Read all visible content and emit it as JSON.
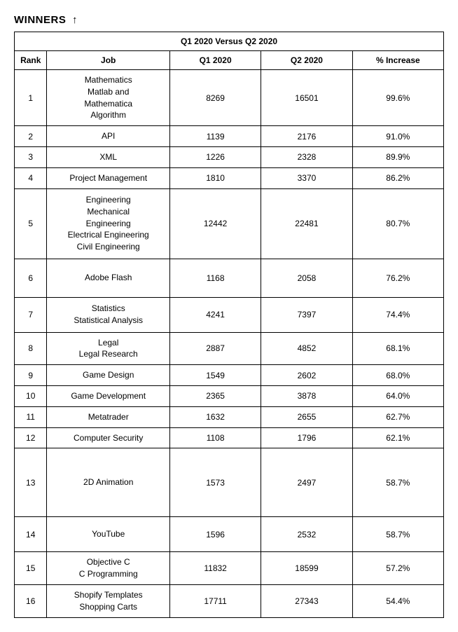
{
  "heading": {
    "text": "WINNERS",
    "arrow": "↑"
  },
  "table": {
    "caption": "Q1 2020 Versus Q2 2020",
    "columns": [
      "Rank",
      "Job",
      "Q1 2020",
      "Q2 2020",
      "% Increase"
    ],
    "rows": [
      {
        "rank": "1",
        "job": [
          "Mathematics",
          "Matlab and",
          "Mathematica",
          "Algorithm"
        ],
        "q1": "8269",
        "q2": "16501",
        "inc": "99.6%",
        "rowClass": "h-tall-1"
      },
      {
        "rank": "2",
        "job": [
          "API"
        ],
        "q1": "1139",
        "q2": "2176",
        "inc": "91.0%",
        "rowClass": ""
      },
      {
        "rank": "3",
        "job": [
          "XML"
        ],
        "q1": "1226",
        "q2": "2328",
        "inc": "89.9%",
        "rowClass": ""
      },
      {
        "rank": "4",
        "job": [
          "Project Management"
        ],
        "q1": "1810",
        "q2": "3370",
        "inc": "86.2%",
        "rowClass": ""
      },
      {
        "rank": "5",
        "job": [
          "Engineering",
          "Mechanical",
          "Engineering",
          "Electrical Engineering",
          "Civil Engineering"
        ],
        "q1": "12442",
        "q2": "22481",
        "inc": "80.7%",
        "rowClass": "h-tall-2"
      },
      {
        "rank": "6",
        "job": [
          "Adobe Flash"
        ],
        "q1": "1168",
        "q2": "2058",
        "inc": "76.2%",
        "rowClass": "h-med"
      },
      {
        "rank": "7",
        "job": [
          "Statistics",
          "Statistical Analysis"
        ],
        "q1": "4241",
        "q2": "7397",
        "inc": "74.4%",
        "rowClass": "h-med2"
      },
      {
        "rank": "8",
        "job": [
          "Legal",
          "Legal Research"
        ],
        "q1": "2887",
        "q2": "4852",
        "inc": "68.1%",
        "rowClass": ""
      },
      {
        "rank": "9",
        "job": [
          "Game Design"
        ],
        "q1": "1549",
        "q2": "2602",
        "inc": "68.0%",
        "rowClass": ""
      },
      {
        "rank": "10",
        "job": [
          "Game Development"
        ],
        "q1": "2365",
        "q2": "3878",
        "inc": "64.0%",
        "rowClass": ""
      },
      {
        "rank": "11",
        "job": [
          "Metatrader"
        ],
        "q1": "1632",
        "q2": "2655",
        "inc": "62.7%",
        "rowClass": ""
      },
      {
        "rank": "12",
        "job": [
          "Computer Security"
        ],
        "q1": "1108",
        "q2": "1796",
        "inc": "62.1%",
        "rowClass": ""
      },
      {
        "rank": "13",
        "job": [
          "2D Animation"
        ],
        "q1": "1573",
        "q2": "2497",
        "inc": "58.7%",
        "rowClass": "h-lg"
      },
      {
        "rank": "14",
        "job": [
          "YouTube"
        ],
        "q1": "1596",
        "q2": "2532",
        "inc": "58.7%",
        "rowClass": "h-med2"
      },
      {
        "rank": "15",
        "job": [
          "Objective C",
          "C Programming"
        ],
        "q1": "11832",
        "q2": "18599",
        "inc": "57.2%",
        "rowClass": ""
      },
      {
        "rank": "16",
        "job": [
          "Shopify Templates",
          "Shopping Carts"
        ],
        "q1": "17711",
        "q2": "27343",
        "inc": "54.4%",
        "rowClass": ""
      }
    ]
  }
}
